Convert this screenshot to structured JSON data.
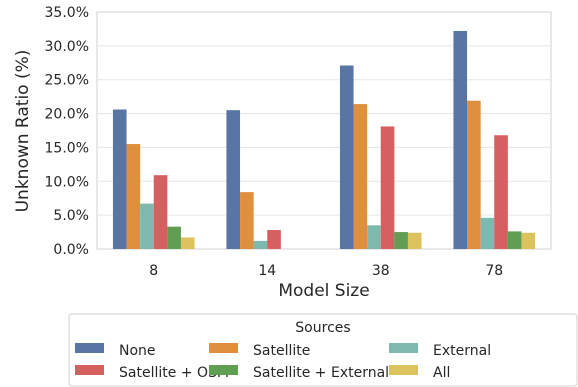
{
  "chart_data": {
    "type": "bar",
    "xlabel": "Model Size",
    "ylabel": "Unknown Ratio (%)",
    "categories": [
      "8",
      "14",
      "38",
      "78"
    ],
    "ylim": [
      0,
      35
    ],
    "yticks": [
      "0.0%",
      "5.0%",
      "10.0%",
      "15.0%",
      "20.0%",
      "25.0%",
      "30.0%",
      "35.0%"
    ],
    "grid": true,
    "legend": {
      "title": "Sources",
      "placement": "bottom"
    },
    "series": [
      {
        "name": "None",
        "color": "#5875a4",
        "values": [
          20.6,
          20.5,
          27.1,
          32.2
        ]
      },
      {
        "name": "Satellite",
        "color": "#e08f3f",
        "values": [
          15.5,
          8.4,
          21.4,
          21.9
        ]
      },
      {
        "name": "External",
        "color": "#7fb8ae",
        "values": [
          6.7,
          1.2,
          3.5,
          4.6
        ]
      },
      {
        "name": "Satellite + OSM",
        "color": "#d65f5f",
        "values": [
          10.9,
          2.8,
          18.1,
          16.8
        ]
      },
      {
        "name": "Satellite + External",
        "color": "#5f9e53",
        "values": [
          3.3,
          0.0,
          2.5,
          2.6
        ]
      },
      {
        "name": "All",
        "color": "#dcc35d",
        "values": [
          1.7,
          0.0,
          2.4,
          2.4
        ]
      }
    ]
  }
}
